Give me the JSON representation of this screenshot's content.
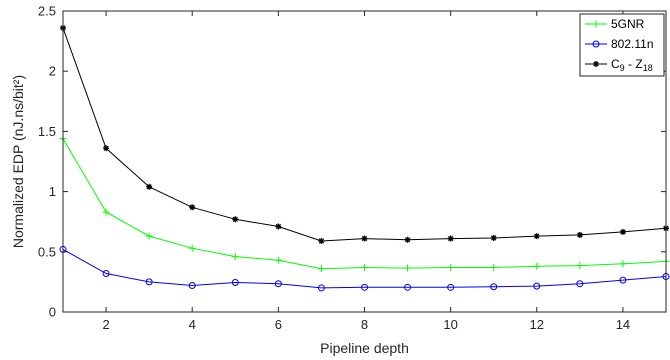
{
  "chart_data": {
    "type": "line",
    "xlabel": "Pipeline depth",
    "ylabel": "Normalized EDP (nJ.ns/bit²)",
    "xlim": [
      1,
      15
    ],
    "ylim": [
      0,
      2.5
    ],
    "xticks": [
      2,
      4,
      6,
      8,
      10,
      12,
      14
    ],
    "yticks": [
      0,
      0.5,
      1,
      1.5,
      2,
      2.5
    ],
    "ytick_labels": [
      "0",
      "0.5",
      "1",
      "1.5",
      "2",
      "2.5"
    ],
    "grid": false,
    "legend_position": "top-right",
    "x": [
      1,
      2,
      3,
      4,
      5,
      6,
      7,
      8,
      9,
      10,
      11,
      12,
      13,
      14,
      15
    ],
    "series": [
      {
        "name": "5GNR",
        "color": "#00ff00",
        "marker": "plus",
        "values": [
          1.44,
          0.83,
          0.63,
          0.53,
          0.46,
          0.43,
          0.36,
          0.37,
          0.365,
          0.37,
          0.37,
          0.38,
          0.385,
          0.4,
          0.42
        ]
      },
      {
        "name": "802.11n",
        "color": "#0000ff",
        "marker": "circle",
        "values": [
          0.52,
          0.32,
          0.25,
          0.22,
          0.245,
          0.235,
          0.2,
          0.205,
          0.205,
          0.205,
          0.21,
          0.215,
          0.235,
          0.265,
          0.295
        ]
      },
      {
        "name_parts": [
          "C",
          "9",
          " - Z",
          "18"
        ],
        "color": "#000000",
        "marker": "star",
        "values": [
          2.36,
          1.36,
          1.04,
          0.87,
          0.77,
          0.71,
          0.59,
          0.61,
          0.6,
          0.61,
          0.615,
          0.63,
          0.64,
          0.665,
          0.695
        ]
      }
    ]
  }
}
